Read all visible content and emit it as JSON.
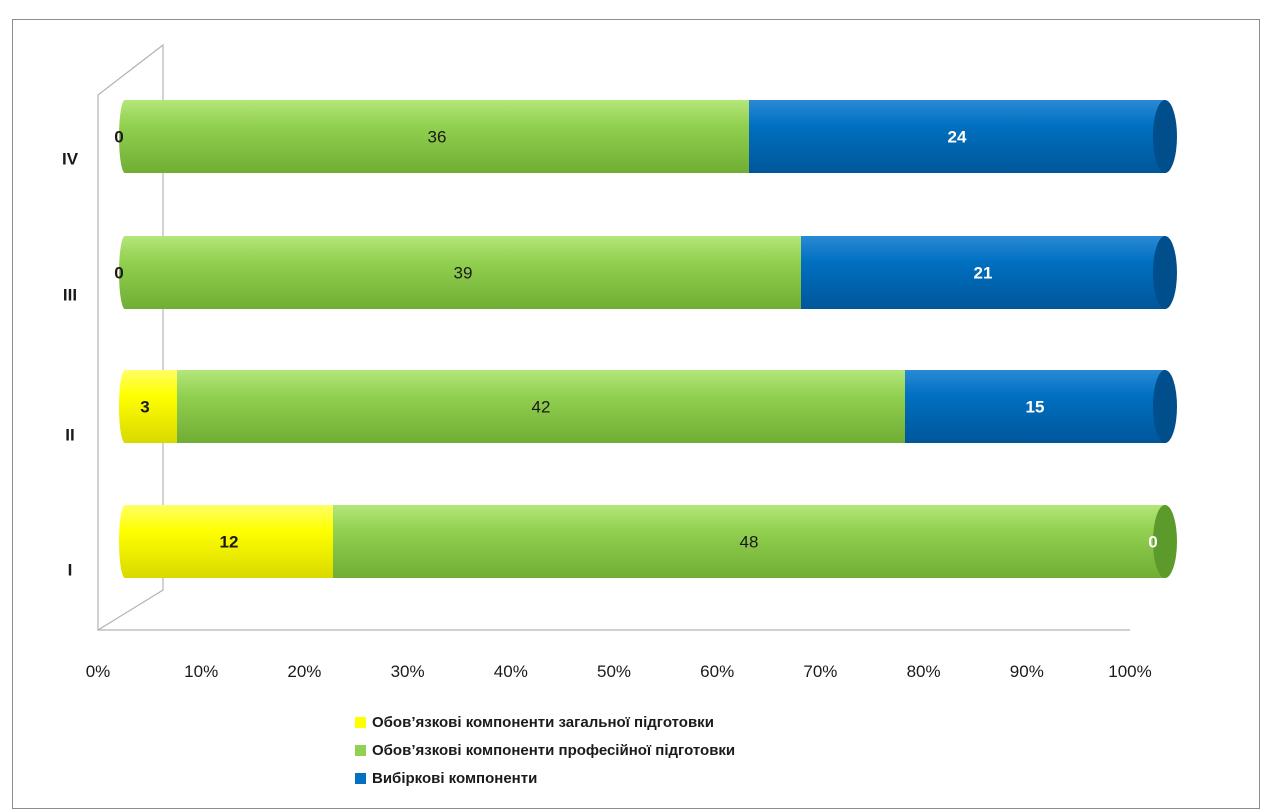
{
  "chart_data": {
    "type": "bar",
    "orientation": "horizontal",
    "stacking": "percent",
    "categories": [
      "I",
      "II",
      "III",
      "IV"
    ],
    "series": [
      {
        "name": "Обов’язкові компоненти загальної підготовки",
        "color": "#ffff00",
        "values": [
          12,
          3,
          0,
          0
        ]
      },
      {
        "name": "Обов’язкові компоненти професійної підготовки",
        "color": "#92d050",
        "values": [
          48,
          42,
          39,
          36
        ]
      },
      {
        "name": "Вибіркові компоненти",
        "color": "#0070c0",
        "values": [
          0,
          15,
          21,
          24
        ]
      }
    ],
    "x_ticks": [
      "0%",
      "10%",
      "20%",
      "30%",
      "40%",
      "50%",
      "60%",
      "70%",
      "80%",
      "90%",
      "100%"
    ],
    "xlim": [
      0,
      100
    ],
    "legend": "bottom",
    "grid": false
  }
}
